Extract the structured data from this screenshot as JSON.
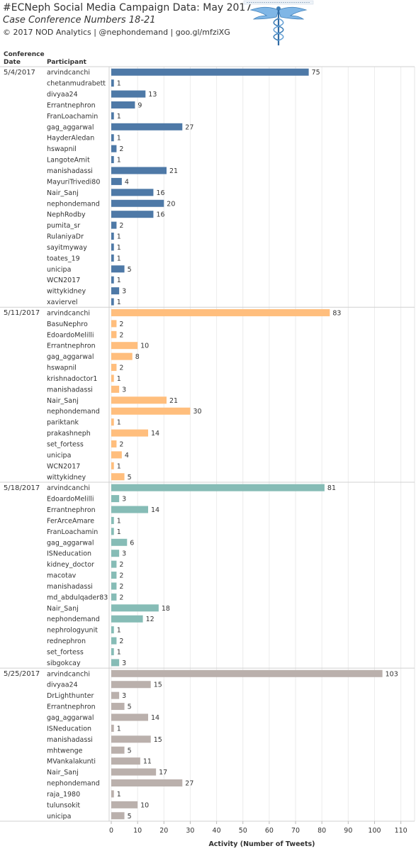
{
  "header": {
    "title": "#ECNeph Social Media Campaign Data:  May 2017",
    "subtitle": "Case Conference Numbers 18-21",
    "credit": "© 2017 NOD Analytics | @nephondemand | goo.gl/mfziXG",
    "logo_caption": "#ECNeph Social Media Campaign Data"
  },
  "columns": {
    "date_header_line1": "Conference",
    "date_header_line2": "Date",
    "participant_header": "Participant"
  },
  "chart_data": {
    "type": "bar",
    "orientation": "horizontal",
    "xlabel": "Activity (Number of Tweets)",
    "xlim": [
      0,
      110
    ],
    "xticks": [
      0,
      10,
      20,
      30,
      40,
      50,
      60,
      70,
      80,
      90,
      100,
      110
    ],
    "grid": true,
    "groups": [
      {
        "date": "5/4/2017",
        "color": "#4e79a7",
        "participants": [
          "arvindcanchi",
          "chetanmudrabett",
          "divyaa24",
          "Errantnephron",
          "FranLoachamin",
          "gag_aggarwal",
          "HayderAledan",
          "hswapnil",
          "LangoteAmit",
          "manishadassi",
          "MayuriTrivedi80",
          "Nair_Sanj",
          "nephondemand",
          "NephRodby",
          "pumita_sr",
          "RulaniyaDr",
          "sayitmyway",
          "toates_19",
          "unicipa",
          "WCN2017",
          "wittykidney",
          "xaviervel"
        ],
        "values": [
          75,
          1,
          13,
          9,
          1,
          27,
          1,
          2,
          1,
          21,
          4,
          16,
          20,
          16,
          2,
          1,
          1,
          1,
          5,
          1,
          3,
          1
        ]
      },
      {
        "date": "5/11/2017",
        "color": "#ffbe7d",
        "participants": [
          "arvindcanchi",
          "BasuNephro",
          "EdoardoMelilli",
          "Errantnephron",
          "gag_aggarwal",
          "hswapnil",
          "krishnadoctor1",
          "manishadassi",
          "Nair_Sanj",
          "nephondemand",
          "pariktank",
          "prakashneph",
          "set_fortess",
          "unicipa",
          "WCN2017",
          "wittykidney"
        ],
        "values": [
          83,
          2,
          2,
          10,
          8,
          2,
          1,
          3,
          21,
          30,
          1,
          14,
          2,
          4,
          1,
          5
        ]
      },
      {
        "date": "5/18/2017",
        "color": "#86bcb6",
        "participants": [
          "arvindcanchi",
          "EdoardoMelilli",
          "Errantnephron",
          "FerArceAmare",
          "FranLoachamin",
          "gag_aggarwal",
          "ISNeducation",
          "kidney_doctor",
          "macotav",
          "manishadassi",
          "md_abdulqader83",
          "Nair_Sanj",
          "nephondemand",
          "nephrologyunit",
          "rednephron",
          "set_fortess",
          "sibgokcay"
        ],
        "values": [
          81,
          3,
          14,
          1,
          1,
          6,
          3,
          2,
          2,
          2,
          2,
          18,
          12,
          1,
          2,
          1,
          3
        ]
      },
      {
        "date": "5/25/2017",
        "color": "#bab0ac",
        "participants": [
          "arvindcanchi",
          "divyaa24",
          "DrLighthunter",
          "Errantnephron",
          "gag_aggarwal",
          "ISNeducation",
          "manishadassi",
          "mhtwenge",
          "MVankalakunti",
          "Nair_Sanj",
          "nephondemand",
          "raja_1980",
          "tulunsokit",
          "unicipa"
        ],
        "values": [
          103,
          15,
          3,
          5,
          14,
          1,
          15,
          5,
          11,
          17,
          27,
          1,
          10,
          5
        ]
      }
    ]
  }
}
